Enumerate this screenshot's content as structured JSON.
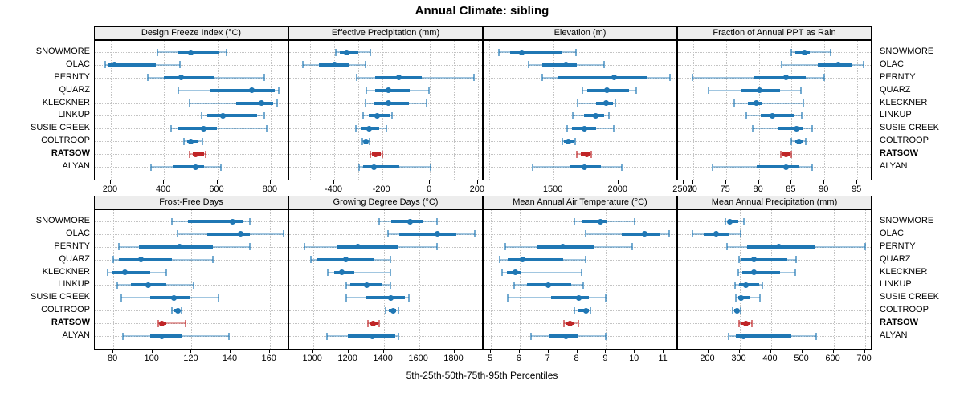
{
  "title": "Annual Climate: sibling",
  "caption": "5th-25th-50th-75th-95th Percentiles",
  "sites": [
    "SNOWMORE",
    "OLAC",
    "PERNTY",
    "QUARZ",
    "KLECKNER",
    "LINKUP",
    "SUSIE CREEK",
    "COLTROOP",
    "RATSOW",
    "ALYAN"
  ],
  "highlighted_site": "RATSOW",
  "colors": {
    "series_blue": "#1f77b4",
    "highlight_red": "#c02527",
    "grid": "#c3c3c3",
    "strip_bg": "#ededed",
    "border": "#000000",
    "text": "#000000"
  },
  "chart_data": {
    "type": "dotplot-percentile-intervals",
    "percentile_labels": [
      "5th",
      "25th",
      "50th",
      "75th",
      "95th"
    ],
    "grid": "dotted horizontal and vertical",
    "legend_position": "none",
    "panels": [
      {
        "title": "Design Freeze Index (°C)",
        "xlim": [
          140,
          870
        ],
        "gridlines": [
          200,
          400,
          600,
          800
        ],
        "ticks": [
          200,
          400,
          600,
          800
        ],
        "tick_labels": [
          "200",
          "400",
          "600",
          "800"
        ],
        "values": [
          [
            375,
            455,
            500,
            605,
            635
          ],
          [
            180,
            192,
            215,
            370,
            460
          ],
          [
            340,
            400,
            465,
            585,
            775
          ],
          [
            455,
            575,
            730,
            815,
            830
          ],
          [
            495,
            670,
            765,
            810,
            825
          ],
          [
            540,
            562,
            620,
            750,
            775
          ],
          [
            428,
            455,
            548,
            600,
            785
          ],
          [
            475,
            487,
            500,
            530,
            545
          ],
          [
            495,
            508,
            520,
            550,
            557
          ],
          [
            350,
            434,
            520,
            550,
            615
          ]
        ]
      },
      {
        "title": "Effective Precipitation (mm)",
        "xlim": [
          -588,
          224
        ],
        "gridlines": [
          -500,
          -400,
          -300,
          -200,
          -100,
          0,
          100,
          200
        ],
        "ticks": [
          -400,
          -200,
          0,
          200
        ],
        "tick_labels": [
          "-400",
          "-200",
          "0",
          "200"
        ],
        "values": [
          [
            -395,
            -378,
            -348,
            -300,
            -250
          ],
          [
            -530,
            -465,
            -398,
            -340,
            -270
          ],
          [
            -305,
            -228,
            -130,
            -33,
            185
          ],
          [
            -267,
            -228,
            -174,
            -83,
            -5
          ],
          [
            -270,
            -234,
            -174,
            -89,
            -15
          ],
          [
            -278,
            -256,
            -220,
            -168,
            -158
          ],
          [
            -308,
            -289,
            -253,
            -211,
            -183
          ],
          [
            -281,
            -276,
            -268,
            -258,
            -252
          ],
          [
            -250,
            -241,
            -226,
            -205,
            -198
          ],
          [
            -295,
            -279,
            -233,
            -128,
            2
          ]
        ]
      },
      {
        "title": "Elevation (m)",
        "xlim": [
          960,
          2460
        ],
        "gridlines": [
          1000,
          1500,
          2000,
          2500
        ],
        "ticks": [
          1500,
          2000,
          2500
        ],
        "tick_labels": [
          "1500",
          "2000",
          "2500"
        ],
        "values": [
          [
            1075,
            1165,
            1255,
            1565,
            1670
          ],
          [
            1305,
            1410,
            1595,
            1680,
            1890
          ],
          [
            1415,
            1537,
            1965,
            2220,
            2395
          ],
          [
            1723,
            1760,
            1910,
            2085,
            2135
          ],
          [
            1686,
            1826,
            1905,
            1957,
            1975
          ],
          [
            1645,
            1733,
            1822,
            1888,
            1926
          ],
          [
            1605,
            1640,
            1735,
            1826,
            1965
          ],
          [
            1568,
            1580,
            1616,
            1655,
            1667
          ],
          [
            1678,
            1707,
            1754,
            1785,
            1791
          ],
          [
            1341,
            1630,
            1738,
            1868,
            2027
          ]
        ]
      },
      {
        "title": "Fraction of Annual PPT as Rain",
        "xlim": [
          67.7,
          97.3
        ],
        "gridlines": [
          70,
          75,
          80,
          85,
          90,
          95
        ],
        "ticks": [
          70,
          75,
          80,
          85,
          90,
          95
        ],
        "tick_labels": [
          "70",
          "75",
          "80",
          "85",
          "90",
          "95"
        ],
        "values": [
          [
            85.0,
            85.5,
            87.0,
            87.8,
            91.0
          ],
          [
            83.5,
            89.0,
            92.1,
            94.3,
            96.0
          ],
          [
            69.9,
            79.2,
            84.2,
            87.2,
            90.0
          ],
          [
            72.3,
            77.2,
            80.1,
            83.2,
            86.4
          ],
          [
            76.3,
            78.3,
            79.6,
            80.5,
            86.8
          ],
          [
            78.1,
            80.3,
            82.1,
            85.4,
            86.5
          ],
          [
            79.1,
            83.0,
            85.7,
            86.8,
            88.1
          ],
          [
            85.0,
            85.5,
            86.1,
            86.7,
            87.1
          ],
          [
            83.3,
            83.6,
            84.2,
            84.8,
            85.0
          ],
          [
            73.0,
            79.7,
            84.2,
            86.0,
            88.1
          ]
        ]
      },
      {
        "title": "Frost-Free Days",
        "xlim": [
          70.5,
          170
        ],
        "gridlines": [
          80,
          100,
          120,
          140,
          160
        ],
        "ticks": [
          80,
          100,
          120,
          140,
          160
        ],
        "tick_labels": [
          "80",
          "100",
          "120",
          "140",
          "160"
        ],
        "values": [
          [
            110,
            118,
            141,
            146,
            150
          ],
          [
            113,
            128,
            145,
            150,
            167
          ],
          [
            83,
            93,
            114,
            131,
            150
          ],
          [
            80,
            83,
            94,
            110,
            131
          ],
          [
            77,
            79,
            86,
            99,
            107
          ],
          [
            82,
            89,
            98,
            107,
            121
          ],
          [
            84,
            99,
            111,
            119,
            134
          ],
          [
            110,
            111,
            113,
            114,
            115
          ],
          [
            103,
            104,
            105,
            107,
            117
          ],
          [
            85,
            99,
            105,
            115,
            139
          ]
        ]
      },
      {
        "title": "Growing Degree Days (°C)",
        "xlim": [
          865,
          1966
        ],
        "gridlines": [
          1000,
          1200,
          1400,
          1600,
          1800
        ],
        "ticks": [
          1000,
          1200,
          1400,
          1600,
          1800
        ],
        "tick_labels": [
          "1000",
          "1200",
          "1400",
          "1600",
          "1800"
        ],
        "values": [
          [
            1375,
            1445,
            1550,
            1625,
            1700
          ],
          [
            1425,
            1490,
            1705,
            1810,
            1915
          ],
          [
            950,
            1135,
            1255,
            1480,
            1700
          ],
          [
            990,
            1025,
            1185,
            1345,
            1440
          ],
          [
            1085,
            1120,
            1165,
            1235,
            1440
          ],
          [
            1190,
            1210,
            1305,
            1390,
            1440
          ],
          [
            1190,
            1295,
            1440,
            1520,
            1545
          ],
          [
            1410,
            1430,
            1455,
            1470,
            1485
          ],
          [
            1310,
            1320,
            1340,
            1365,
            1375
          ],
          [
            1080,
            1195,
            1335,
            1465,
            1485
          ]
        ]
      },
      {
        "title": "Mean Annual Air Temperature (°C)",
        "xlim": [
          4.75,
          11.5
        ],
        "gridlines": [
          5,
          6,
          7,
          8,
          9,
          10,
          11
        ],
        "ticks": [
          5,
          6,
          7,
          8,
          9,
          10,
          11
        ],
        "tick_labels": [
          "5",
          "6",
          "7",
          "8",
          "9",
          "10",
          "11"
        ],
        "values": [
          [
            7.9,
            8.15,
            8.8,
            9.05,
            10.0
          ],
          [
            8.3,
            9.55,
            10.35,
            10.85,
            11.2
          ],
          [
            5.5,
            6.6,
            7.5,
            8.6,
            9.9
          ],
          [
            5.3,
            5.6,
            6.1,
            7.5,
            8.3
          ],
          [
            5.4,
            5.55,
            5.85,
            6.05,
            8.15
          ],
          [
            5.8,
            6.25,
            7.0,
            7.8,
            8.2
          ],
          [
            5.6,
            7.1,
            8.05,
            8.4,
            9.0
          ],
          [
            7.9,
            8.05,
            8.3,
            8.4,
            8.45
          ],
          [
            7.55,
            7.62,
            7.75,
            7.9,
            8.05
          ],
          [
            6.4,
            7.0,
            7.6,
            8.0,
            9.0
          ]
        ]
      },
      {
        "title": "Mean Annual Precipitation (mm)",
        "xlim": [
          104,
          724
        ],
        "gridlines": [
          200,
          300,
          400,
          500,
          600,
          700
        ],
        "ticks": [
          200,
          300,
          400,
          500,
          600,
          700
        ],
        "tick_labels": [
          "200",
          "300",
          "400",
          "500",
          "600",
          "700"
        ],
        "values": [
          [
            255,
            262,
            270,
            295,
            313
          ],
          [
            150,
            185,
            225,
            265,
            303
          ],
          [
            260,
            325,
            425,
            540,
            700
          ],
          [
            298,
            306,
            347,
            453,
            481
          ],
          [
            295,
            310,
            345,
            430,
            479
          ],
          [
            285,
            298,
            320,
            364,
            373
          ],
          [
            289,
            295,
            306,
            332,
            366
          ],
          [
            278,
            283,
            292,
            300,
            303
          ],
          [
            298,
            306,
            320,
            332,
            340
          ],
          [
            266,
            288,
            313,
            465,
            545
          ]
        ]
      }
    ]
  }
}
